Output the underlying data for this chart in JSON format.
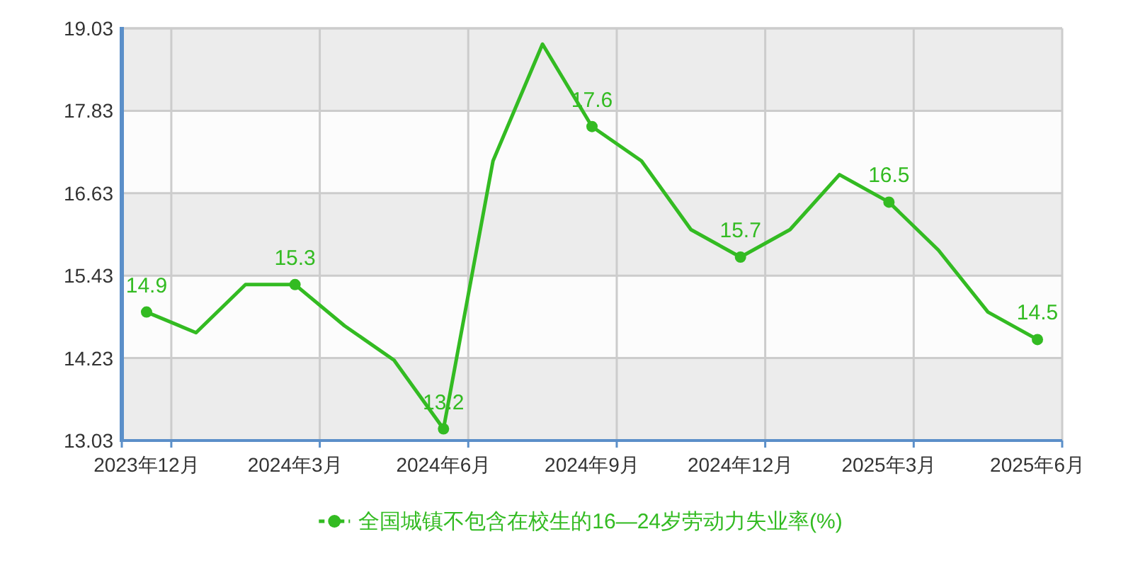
{
  "chart_data": {
    "type": "line",
    "categories": [
      "2023年12月",
      null,
      null,
      "2024年3月",
      null,
      null,
      "2024年6月",
      null,
      null,
      "2024年9月",
      null,
      null,
      "2024年12月",
      null,
      null,
      "2025年3月",
      null,
      null,
      "2025年6月"
    ],
    "series": [
      {
        "name": "全国城镇不包含在校生的16—24岁劳动力失业率(%)",
        "color": "#33bb22",
        "marker": "none",
        "values": [
          14.9,
          14.6,
          15.3,
          15.3,
          14.7,
          14.2,
          13.2,
          17.1,
          18.8,
          17.6,
          17.1,
          16.1,
          15.7,
          16.1,
          16.9,
          16.5,
          15.8,
          14.9,
          14.5
        ]
      },
      {
        "type": "scatter",
        "color": "#33bb22",
        "marker": "circle",
        "x": [
          "2023年12月",
          "2024年3月",
          "2024年6月",
          "2024年9月",
          "2024年12月",
          "2025年3月",
          "2025年6月"
        ],
        "values": [
          14.9,
          15.3,
          13.2,
          17.6,
          15.7,
          16.5,
          14.5
        ],
        "value_labels": [
          "14.9",
          "15.3",
          "13.2",
          "17.6",
          "15.7",
          "16.5",
          "14.5"
        ]
      }
    ],
    "ylim": [
      13.03,
      19.03
    ],
    "yticks": [
      13.03,
      14.23,
      15.43,
      16.63,
      17.83,
      19.03
    ],
    "grid": true,
    "legend": "bottom",
    "line_style": "solid"
  }
}
